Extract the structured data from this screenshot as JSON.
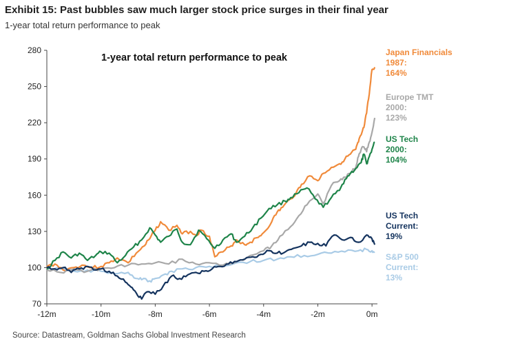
{
  "header": {
    "title": "Exhibit 15: Past bubbles saw much larger stock price surges in their final year",
    "subtitle": "1-year total return performance to peak"
  },
  "source": "Source: Datastream, Goldman Sachs Global Investment Research",
  "chart_data": {
    "type": "line",
    "title": "1-year total return performance to peak",
    "xlabel": "",
    "ylabel": "",
    "xlim": [
      -12,
      0.2
    ],
    "ylim": [
      70,
      280
    ],
    "yticks": [
      70,
      100,
      130,
      160,
      190,
      220,
      250,
      280
    ],
    "xticks": [
      -12,
      -10,
      -8,
      -6,
      -4,
      -2,
      0
    ],
    "xtick_labels": [
      "-12m",
      "-10m",
      "-8m",
      "-6m",
      "-4m",
      "-2m",
      "0m"
    ],
    "grid": false,
    "legend": "direct labels at right",
    "series": [
      {
        "name": "Japan Financials 1987: 164%",
        "label_lines": [
          "Japan Financials",
          "1987:",
          "164%"
        ],
        "color": "#F08A3A",
        "x": [
          -12,
          -11.7,
          -11.4,
          -11.0,
          -10.7,
          -10.3,
          -10.0,
          -9.7,
          -9.4,
          -9.0,
          -8.7,
          -8.4,
          -8.2,
          -8.0,
          -7.8,
          -7.5,
          -7.2,
          -7.0,
          -6.7,
          -6.5,
          -6.3,
          -6.0,
          -5.8,
          -5.5,
          -5.2,
          -5.0,
          -4.7,
          -4.5,
          -4.2,
          -4.0,
          -3.7,
          -3.5,
          -3.3,
          -3.0,
          -2.8,
          -2.6,
          -2.3,
          -2.0,
          -1.8,
          -1.5,
          -1.2,
          -1.0,
          -0.8,
          -0.6,
          -0.5,
          -0.4,
          -0.3,
          -0.2,
          -0.1,
          0.0,
          0.1
        ],
        "y": [
          101,
          103,
          98,
          100,
          102,
          100,
          101,
          104,
          108,
          104,
          112,
          118,
          124,
          131,
          138,
          131,
          135,
          128,
          130,
          127,
          131,
          126,
          109,
          113,
          118,
          123,
          119,
          121,
          125,
          129,
          138,
          146,
          150,
          157,
          162,
          169,
          176,
          172,
          178,
          183,
          186,
          190,
          194,
          198,
          204,
          210,
          216,
          228,
          244,
          264,
          266
        ]
      },
      {
        "name": "Europe TMT 2000: 123%",
        "label_lines": [
          "Europe TMT",
          "2000:",
          "123%"
        ],
        "color": "#A8A8A8",
        "x": [
          -12,
          -11.5,
          -11.0,
          -10.5,
          -10.0,
          -9.5,
          -9.0,
          -8.5,
          -8.0,
          -7.5,
          -7.0,
          -6.5,
          -6.0,
          -5.5,
          -5.0,
          -4.5,
          -4.0,
          -3.7,
          -3.4,
          -3.0,
          -2.7,
          -2.4,
          -2.0,
          -1.8,
          -1.5,
          -1.2,
          -1.0,
          -0.8,
          -0.6,
          -0.5,
          -0.4,
          -0.3,
          -0.2,
          -0.1,
          0.0,
          0.1
        ],
        "y": [
          98,
          96,
          99,
          97,
          99,
          100,
          102,
          103,
          104,
          103,
          107,
          103,
          104,
          102,
          105,
          110,
          114,
          118,
          126,
          134,
          143,
          152,
          161,
          153,
          168,
          172,
          175,
          178,
          183,
          192,
          198,
          200,
          196,
          204,
          212,
          224
        ]
      },
      {
        "name": "US Tech 2000: 104%",
        "label_lines": [
          "US Tech",
          "2000:",
          "104%"
        ],
        "color": "#1E8449",
        "x": [
          -12,
          -11.7,
          -11.4,
          -11.1,
          -10.8,
          -10.5,
          -10.2,
          -10.0,
          -9.7,
          -9.4,
          -9.1,
          -8.8,
          -8.5,
          -8.2,
          -8.0,
          -7.8,
          -7.5,
          -7.2,
          -7.0,
          -6.7,
          -6.4,
          -6.1,
          -5.8,
          -5.5,
          -5.2,
          -5.0,
          -4.7,
          -4.4,
          -4.1,
          -3.8,
          -3.5,
          -3.2,
          -3.0,
          -2.7,
          -2.4,
          -2.1,
          -1.8,
          -1.5,
          -1.2,
          -1.0,
          -0.8,
          -0.6,
          -0.4,
          -0.3,
          -0.2,
          -0.1,
          0.0,
          0.1
        ],
        "y": [
          99,
          106,
          113,
          108,
          112,
          106,
          110,
          113,
          112,
          104,
          110,
          117,
          123,
          133,
          127,
          121,
          126,
          132,
          121,
          119,
          131,
          124,
          116,
          123,
          128,
          121,
          126,
          133,
          141,
          149,
          152,
          155,
          158,
          162,
          166,
          157,
          150,
          158,
          164,
          173,
          178,
          182,
          187,
          194,
          186,
          192,
          198,
          204
        ]
      },
      {
        "name": "US Tech Current: 19%",
        "label_lines": [
          "US Tech",
          "Current:",
          "19%"
        ],
        "color": "#14335E",
        "x": [
          -12,
          -11.7,
          -11.4,
          -11.1,
          -10.8,
          -10.5,
          -10.2,
          -10.0,
          -9.7,
          -9.4,
          -9.1,
          -8.9,
          -8.7,
          -8.5,
          -8.3,
          -8.0,
          -7.7,
          -7.4,
          -7.1,
          -6.8,
          -6.5,
          -6.2,
          -5.9,
          -5.6,
          -5.3,
          -5.0,
          -4.7,
          -4.4,
          -4.1,
          -3.8,
          -3.5,
          -3.2,
          -2.9,
          -2.6,
          -2.3,
          -2.0,
          -1.7,
          -1.4,
          -1.1,
          -0.8,
          -0.5,
          -0.2,
          0.0,
          0.1
        ],
        "y": [
          100,
          99,
          100,
          96,
          99,
          101,
          98,
          99,
          97,
          93,
          88,
          84,
          79,
          74,
          80,
          78,
          85,
          93,
          91,
          94,
          96,
          97,
          99,
          101,
          103,
          105,
          107,
          109,
          111,
          114,
          112,
          113,
          116,
          118,
          121,
          120,
          118,
          127,
          123,
          125,
          121,
          127,
          124,
          119
        ]
      },
      {
        "name": "S&P 500 Current: 13%",
        "label_lines": [
          "S&P 500",
          "Current:",
          "13%"
        ],
        "color": "#A9CBE6",
        "x": [
          -12,
          -11.5,
          -11.0,
          -10.5,
          -10.0,
          -9.5,
          -9.0,
          -8.7,
          -8.5,
          -8.2,
          -8.0,
          -7.7,
          -7.4,
          -7.0,
          -6.5,
          -6.0,
          -5.5,
          -5.0,
          -4.5,
          -4.0,
          -3.5,
          -3.0,
          -2.5,
          -2.0,
          -1.5,
          -1.0,
          -0.5,
          -0.2,
          0.0,
          0.1
        ],
        "y": [
          99,
          99,
          97,
          98,
          97,
          95,
          96,
          91,
          90,
          89,
          91,
          94,
          97,
          99,
          100,
          101,
          102,
          104,
          105,
          106,
          107,
          109,
          110,
          111,
          112,
          113,
          114,
          115,
          114,
          113
        ]
      }
    ]
  }
}
